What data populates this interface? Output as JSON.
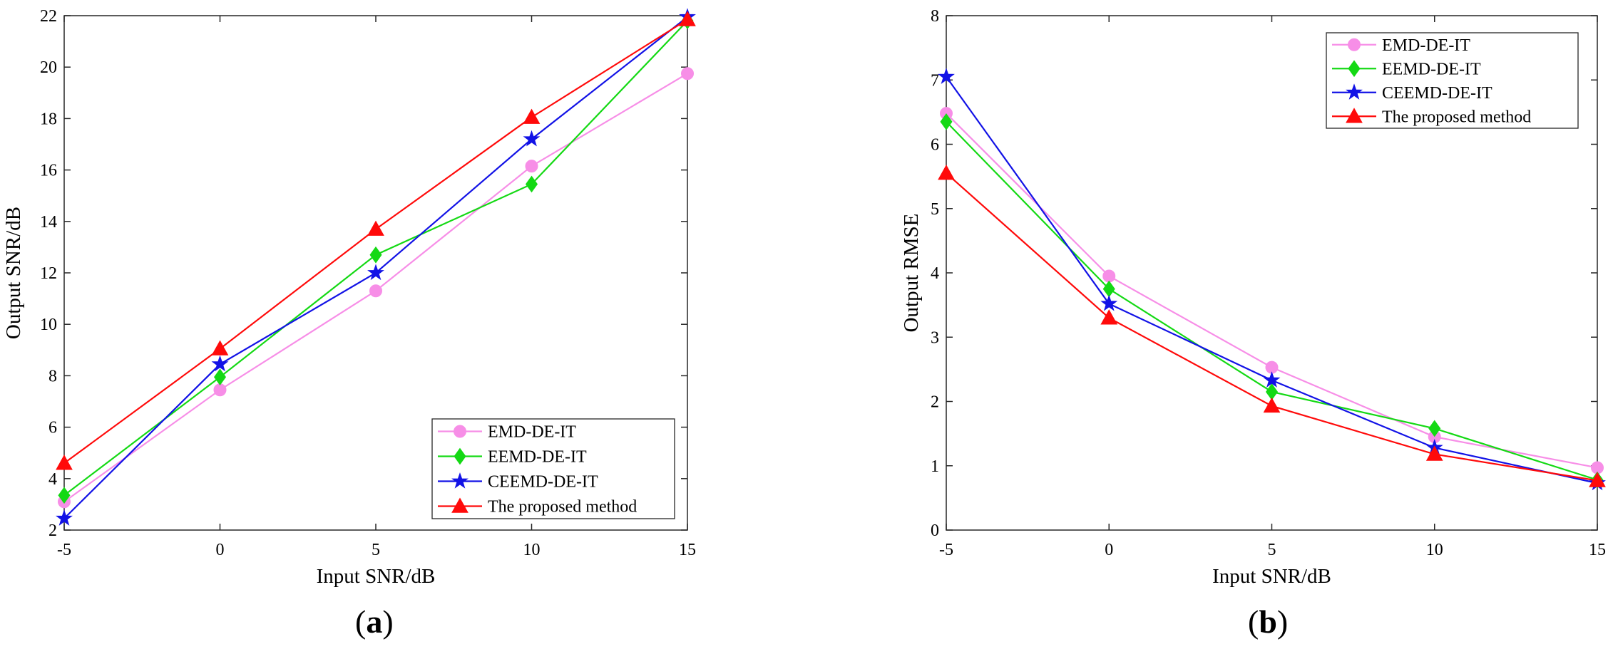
{
  "chart_data": [
    {
      "type": "line",
      "panel_label": "(a)",
      "panel_letter": "a",
      "xlabel": "Input SNR/dB",
      "ylabel": "Output SNR/dB",
      "x": [
        -5,
        0,
        5,
        10,
        15
      ],
      "xticks": [
        -5,
        0,
        5,
        10,
        15
      ],
      "xlim": [
        -5,
        15
      ],
      "ylim": [
        2,
        22
      ],
      "yticks": [
        2,
        4,
        6,
        8,
        10,
        12,
        14,
        16,
        18,
        20,
        22
      ],
      "legend_position": "bottom-right",
      "series": [
        {
          "name": "EMD-DE-IT",
          "color": "#f78ee7",
          "marker": "circle",
          "values": [
            3.1,
            7.45,
            11.3,
            16.15,
            19.75
          ]
        },
        {
          "name": "EEMD-DE-IT",
          "color": "#14d914",
          "marker": "diamond",
          "values": [
            3.35,
            7.95,
            12.7,
            15.45,
            21.8
          ]
        },
        {
          "name": "CEEMD-DE-IT",
          "color": "#1212e6",
          "marker": "star",
          "values": [
            2.45,
            8.45,
            12.0,
            17.2,
            21.95
          ]
        },
        {
          "name": "The proposed method",
          "color": "#ff0a0a",
          "marker": "triangle",
          "values": [
            4.6,
            9.05,
            13.7,
            18.05,
            21.85
          ]
        }
      ]
    },
    {
      "type": "line",
      "panel_label": "(b)",
      "panel_letter": "b",
      "xlabel": "Input SNR/dB",
      "ylabel": "Output RMSE",
      "x": [
        -5,
        0,
        5,
        10,
        15
      ],
      "xticks": [
        -5,
        0,
        5,
        10,
        15
      ],
      "xlim": [
        -5,
        15
      ],
      "ylim": [
        0,
        8
      ],
      "yticks": [
        0,
        1,
        2,
        3,
        4,
        5,
        6,
        7,
        8
      ],
      "legend_position": "top-right",
      "series": [
        {
          "name": "EMD-DE-IT",
          "color": "#f78ee7",
          "marker": "circle",
          "values": [
            6.48,
            3.95,
            2.53,
            1.45,
            0.97
          ]
        },
        {
          "name": "EEMD-DE-IT",
          "color": "#14d914",
          "marker": "diamond",
          "values": [
            6.35,
            3.75,
            2.15,
            1.58,
            0.78
          ]
        },
        {
          "name": "CEEMD-DE-IT",
          "color": "#1212e6",
          "marker": "star",
          "values": [
            7.05,
            3.52,
            2.33,
            1.28,
            0.73
          ]
        },
        {
          "name": "The proposed method",
          "color": "#ff0a0a",
          "marker": "triangle",
          "values": [
            5.55,
            3.3,
            1.93,
            1.18,
            0.77
          ]
        }
      ]
    }
  ]
}
